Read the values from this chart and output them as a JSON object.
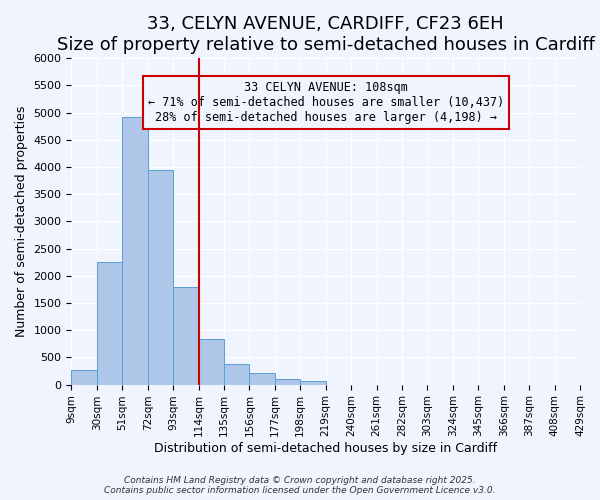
{
  "title": "33, CELYN AVENUE, CARDIFF, CF23 6EH",
  "subtitle": "Size of property relative to semi-detached houses in Cardiff",
  "xlabel": "Distribution of semi-detached houses by size in Cardiff",
  "ylabel": "Number of semi-detached properties",
  "bin_labels": [
    "9sqm",
    "30sqm",
    "51sqm",
    "72sqm",
    "93sqm",
    "114sqm",
    "135sqm",
    "156sqm",
    "177sqm",
    "198sqm",
    "219sqm",
    "240sqm",
    "261sqm",
    "282sqm",
    "303sqm",
    "324sqm",
    "345sqm",
    "366sqm",
    "387sqm",
    "408sqm",
    "429sqm"
  ],
  "bar_values": [
    270,
    2260,
    4920,
    3950,
    1790,
    840,
    380,
    210,
    95,
    70,
    0,
    0,
    0,
    0,
    0,
    0,
    0,
    0,
    0,
    0
  ],
  "bar_color": "#aec6e8",
  "bar_edge_color": "#5a9fd4",
  "vline_x": 5,
  "vline_color": "#cc0000",
  "annotation_title": "33 CELYN AVENUE: 108sqm",
  "annotation_line1": "← 71% of semi-detached houses are smaller (10,437)",
  "annotation_line2": "28% of semi-detached houses are larger (4,198) →",
  "annotation_box_color": "#cc0000",
  "ylim": [
    0,
    6000
  ],
  "yticks": [
    0,
    500,
    1000,
    1500,
    2000,
    2500,
    3000,
    3500,
    4000,
    4500,
    5000,
    5500,
    6000
  ],
  "background_color": "#f0f4ff",
  "footer1": "Contains HM Land Registry data © Crown copyright and database right 2025.",
  "footer2": "Contains public sector information licensed under the Open Government Licence v3.0.",
  "title_fontsize": 13,
  "subtitle_fontsize": 11
}
